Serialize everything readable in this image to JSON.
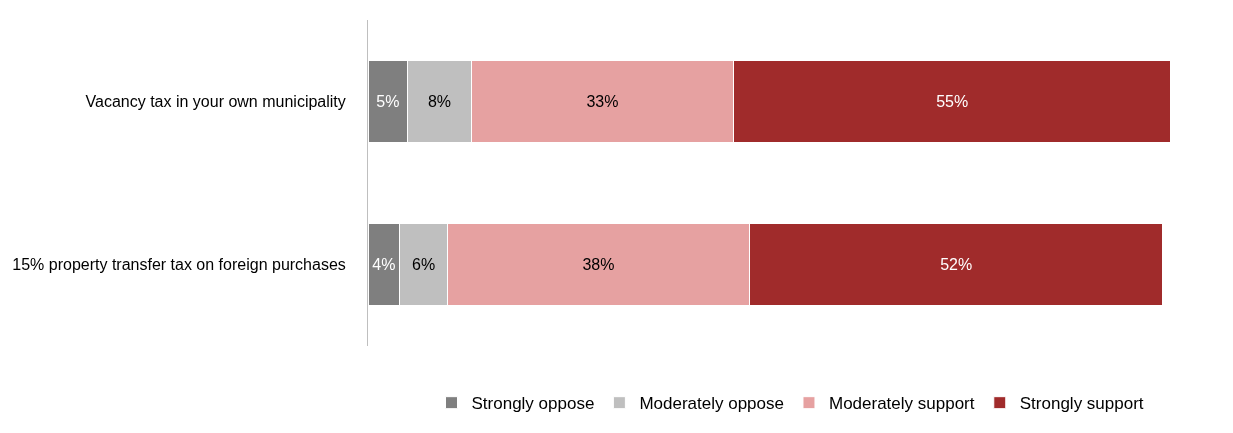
{
  "chart_data": {
    "type": "bar",
    "orientation": "horizontal",
    "stacked": true,
    "legend": "bottom",
    "categories": [
      "Vacancy tax in your own municipality",
      "15% property transfer tax on foreign purchases"
    ],
    "series": [
      {
        "name": "Strongly oppose",
        "color": "#7f7f7f",
        "values": [
          5,
          4
        ],
        "value_labels": [
          "5%",
          "4%"
        ]
      },
      {
        "name": "Moderately oppose",
        "color": "#bfbfbf",
        "values": [
          8,
          6
        ],
        "value_labels": [
          "8%",
          "6%"
        ]
      },
      {
        "name": "Moderately support",
        "color": "#e6a1a1",
        "values": [
          33,
          38
        ],
        "value_labels": [
          "33%",
          "38%"
        ]
      },
      {
        "name": "Strongly support",
        "color": "#a02b2b",
        "values": [
          55,
          52
        ],
        "value_labels": [
          "55%",
          "52%"
        ]
      }
    ]
  }
}
